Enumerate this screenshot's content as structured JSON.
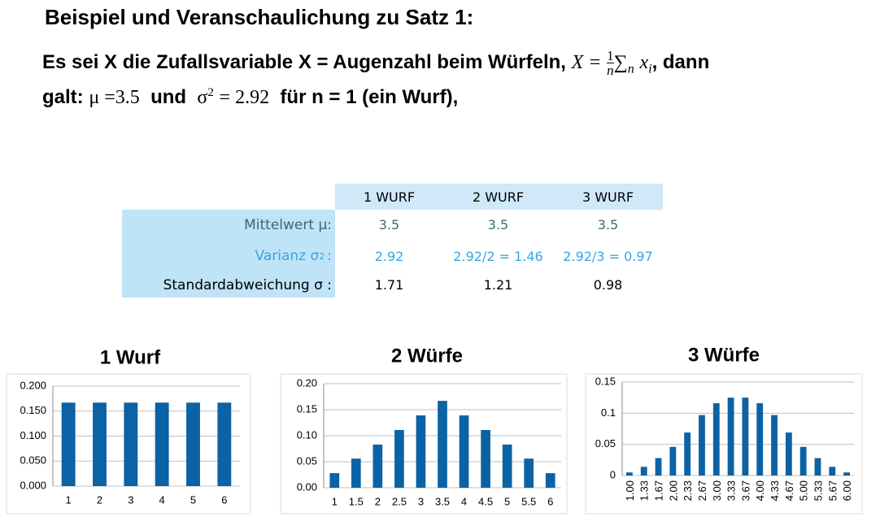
{
  "heading": "Beispiel und Veranschaulichung zu Satz 1:",
  "intro": {
    "line1": "Es sei X die Zufallsvariable X = Augenzahl beim Würfeln,",
    "formula": {
      "lhs": "X =",
      "num": "1",
      "den": "n",
      "sum": "∑",
      "sum_sub": "n",
      "var": "x",
      "var_sub": "i"
    },
    "line1_end": ", dann",
    "line2_start": "galt:",
    "mu": "μ =3.5",
    "und": "und",
    "sigma": "σ",
    "sigma_sup": "2",
    "sigma_val": "= 2.92",
    "line2_end": "für n = 1 (ein Wurf),"
  },
  "table": {
    "header": [
      "1 WURF",
      "2 WURF",
      "3 WURF"
    ],
    "rows": [
      {
        "label": "Mittelwert μ:",
        "cells": [
          "3.5",
          "3.5",
          "3.5"
        ]
      },
      {
        "label": "Varianz σ",
        "label_sup": "2",
        "label_end": ":",
        "cells": [
          "2.92",
          "2.92/2 = 1.46",
          "2.92/3 = 0.97"
        ]
      },
      {
        "label": "Standardabweichung σ :",
        "cells": [
          "1.71",
          "1.21",
          "0.98"
        ]
      }
    ]
  },
  "chart_data": [
    {
      "type": "bar",
      "title": "1 Wurf",
      "color": "#0b62a4",
      "grid": true,
      "categories": [
        "1",
        "2",
        "3",
        "4",
        "5",
        "6"
      ],
      "values": [
        0.167,
        0.167,
        0.167,
        0.167,
        0.167,
        0.167
      ],
      "ylim": [
        0,
        0.2
      ],
      "yticks": [
        {
          "value": 0,
          "label": "0.000"
        },
        {
          "value": 0.05,
          "label": "0.050"
        },
        {
          "value": 0.1,
          "label": "0.100"
        },
        {
          "value": 0.15,
          "label": "0.150"
        },
        {
          "value": 0.2,
          "label": "0.200"
        }
      ]
    },
    {
      "type": "bar",
      "title": "2 Würfe",
      "color": "#0b62a4",
      "grid": true,
      "categories": [
        "1",
        "1.5",
        "2",
        "2.5",
        "3",
        "3.5",
        "4",
        "4.5",
        "5",
        "5.5",
        "6"
      ],
      "values": [
        0.028,
        0.056,
        0.083,
        0.111,
        0.139,
        0.167,
        0.139,
        0.111,
        0.083,
        0.056,
        0.028
      ],
      "ylim": [
        0,
        0.2
      ],
      "yticks": [
        {
          "value": 0,
          "label": "0.00"
        },
        0.05,
        {
          "value": 0.1,
          "label": "0.10"
        },
        0.15,
        {
          "value": 0.2,
          "label": "0.20"
        }
      ]
    },
    {
      "type": "bar",
      "title": "3 Würfe",
      "color": "#0b62a4",
      "grid": true,
      "categories": [
        "1.00",
        "1.33",
        "1.67",
        "2.00",
        "2.33",
        "2.67",
        "3.00",
        "3.33",
        "3.67",
        "4.00",
        "4.33",
        "4.67",
        "5.00",
        "5.33",
        "5.67",
        "6.00"
      ],
      "values": [
        0.005,
        0.014,
        0.028,
        0.046,
        0.069,
        0.097,
        0.116,
        0.125,
        0.125,
        0.116,
        0.097,
        0.069,
        0.046,
        0.028,
        0.014,
        0.005
      ],
      "ylim": [
        0,
        0.15
      ],
      "yticks": [
        0,
        0.05,
        0.1,
        0.15
      ]
    }
  ]
}
